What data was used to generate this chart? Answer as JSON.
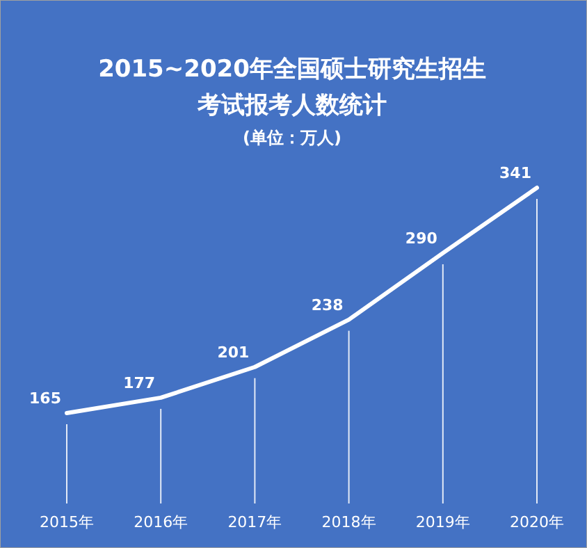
{
  "chart_data": {
    "type": "line",
    "title": "2015~2020年全国硕士研究生招生考试报考人数统计",
    "subtitle": "(单位：万人)",
    "categories": [
      "2015年",
      "2016年",
      "2017年",
      "2018年",
      "2019年",
      "2020年"
    ],
    "series": [
      {
        "color": "#ffffff",
        "values": [
          165,
          177,
          201,
          238,
          290,
          341
        ]
      }
    ],
    "data_labels": true,
    "grid": "x",
    "line_style": "solid"
  }
}
